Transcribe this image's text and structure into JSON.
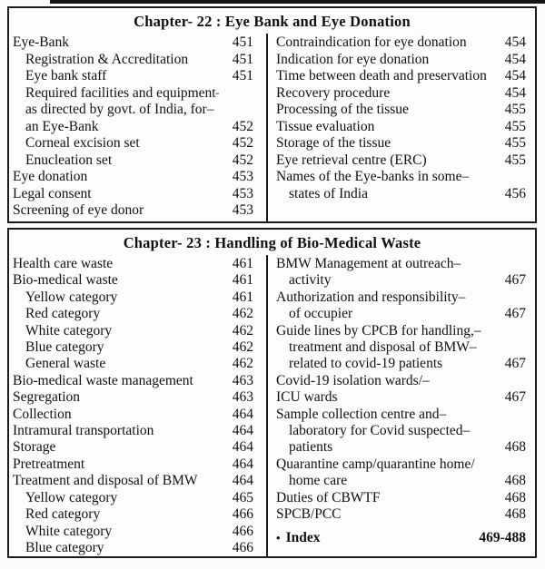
{
  "artifact": {
    "description": "scan-edge-line"
  },
  "colors": {
    "border": "#1b1b1b",
    "text": "#101010",
    "page_bg": "#fbfbf9"
  },
  "sections": [
    {
      "id": "ch22",
      "title": "Chapter- 22 : Eye Bank and Eye Donation",
      "left": [
        {
          "label": "Eye-Bank",
          "page": "451",
          "indent": 0
        },
        {
          "label": "Registration & Accreditation",
          "page": "451",
          "indent": 1
        },
        {
          "label": "Eye bank staff",
          "page": "451",
          "indent": 1
        },
        {
          "label": "Required facilities and equipment–",
          "page": "",
          "indent": 1
        },
        {
          "label": "as directed by govt. of India, for–",
          "page": "",
          "indent": 1
        },
        {
          "label": "an Eye-Bank",
          "page": "452",
          "indent": 1
        },
        {
          "label": "Corneal excision set",
          "page": "452",
          "indent": 1
        },
        {
          "label": "Enucleation set",
          "page": "452",
          "indent": 1
        },
        {
          "label": "Eye donation",
          "page": "453",
          "indent": 0
        },
        {
          "label": "Legal consent",
          "page": "453",
          "indent": 0
        },
        {
          "label": "Screening of eye donor",
          "page": "453",
          "indent": 0
        }
      ],
      "right": [
        {
          "label": "Contraindication for eye donation",
          "page": "454",
          "indent": 0
        },
        {
          "label": "Indication for eye donation",
          "page": "454",
          "indent": 0
        },
        {
          "label": "Time between death and preservation",
          "page": "454",
          "indent": 0
        },
        {
          "label": "Recovery procedure",
          "page": "454",
          "indent": 0
        },
        {
          "label": "Processing of the tissue",
          "page": "455",
          "indent": 0
        },
        {
          "label": "Tissue evaluation",
          "page": "455",
          "indent": 0
        },
        {
          "label": "Storage of the tissue",
          "page": "455",
          "indent": 0
        },
        {
          "label": "Eye retrieval centre (ERC)",
          "page": "455",
          "indent": 0
        },
        {
          "label": "Names of the Eye-banks in some–",
          "page": "",
          "indent": 0
        },
        {
          "label": "states of India",
          "page": "456",
          "indent": 1
        }
      ]
    },
    {
      "id": "ch23",
      "title": "Chapter- 23 : Handling of Bio-Medical Waste",
      "left": [
        {
          "label": "Health care waste",
          "page": "461",
          "indent": 0
        },
        {
          "label": "Bio-medical waste",
          "page": "461",
          "indent": 0
        },
        {
          "label": "Yellow category",
          "page": "461",
          "indent": 1
        },
        {
          "label": "Red category",
          "page": "462",
          "indent": 1
        },
        {
          "label": "White category",
          "page": "462",
          "indent": 1
        },
        {
          "label": "Blue category",
          "page": "462",
          "indent": 1
        },
        {
          "label": "General waste",
          "page": "462",
          "indent": 1
        },
        {
          "label": "Bio-medical waste management",
          "page": "463",
          "indent": 0
        },
        {
          "label": "Segregation",
          "page": "463",
          "indent": 0
        },
        {
          "label": "Collection",
          "page": "464",
          "indent": 0
        },
        {
          "label": "Intramural transportation",
          "page": "464",
          "indent": 0
        },
        {
          "label": "Storage",
          "page": "464",
          "indent": 0
        },
        {
          "label": "Pretreatment",
          "page": "464",
          "indent": 0
        },
        {
          "label": "Treatment and disposal of BMW",
          "page": "464",
          "indent": 0
        },
        {
          "label": "Yellow category",
          "page": "465",
          "indent": 1
        },
        {
          "label": "Red category",
          "page": "466",
          "indent": 1
        },
        {
          "label": "White category",
          "page": "466",
          "indent": 1
        },
        {
          "label": "Blue category",
          "page": "466",
          "indent": 1
        }
      ],
      "right": [
        {
          "label": "BMW Management at outreach–",
          "page": "",
          "indent": 0
        },
        {
          "label": "activity",
          "page": "467",
          "indent": 1
        },
        {
          "label": "Authorization and responsibility–",
          "page": "",
          "indent": 0
        },
        {
          "label": "of occupier",
          "page": "467",
          "indent": 1
        },
        {
          "label": "Guide lines by CPCB for handling,–",
          "page": "",
          "indent": 0
        },
        {
          "label": "treatment and disposal of BMW–",
          "page": "",
          "indent": 1
        },
        {
          "label": "related to covid-19 patients",
          "page": "467",
          "indent": 1
        },
        {
          "label": "Covid-19 isolation wards/–",
          "page": "",
          "indent": 0
        },
        {
          "label": "ICU wards",
          "page": "467",
          "indent": 0
        },
        {
          "label": "Sample collection centre and–",
          "page": "",
          "indent": 0
        },
        {
          "label": "laboratory for Covid suspected–",
          "page": "",
          "indent": 1
        },
        {
          "label": "patients",
          "page": "468",
          "indent": 1
        },
        {
          "label": "Quarantine camp/quarantine home/",
          "page": "",
          "indent": 0
        },
        {
          "label": "home care",
          "page": "468",
          "indent": 1
        },
        {
          "label": "Duties of CBWTF",
          "page": "468",
          "indent": 0
        },
        {
          "label": "SPCB/PCC",
          "page": "468",
          "indent": 0
        },
        {
          "label": "Index",
          "page": "469-488",
          "indent": 0,
          "bold": true,
          "bullet": "•"
        }
      ]
    }
  ]
}
